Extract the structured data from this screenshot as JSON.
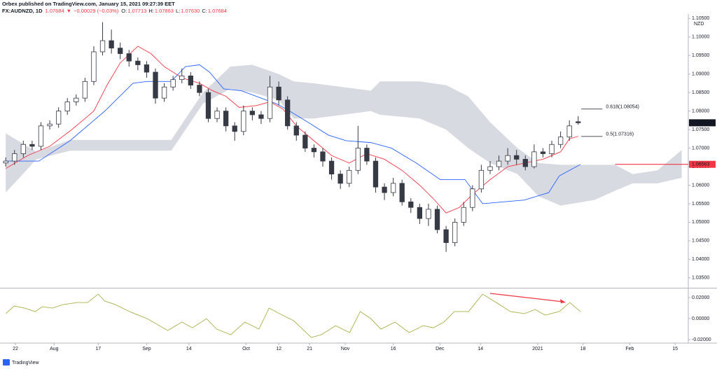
{
  "header": {
    "publisher": "Orbex published on TradingView.com, January 15, 2021 09:27:39 EET",
    "symbol": "FX:AUDNZD, 1D",
    "last": "1.07684",
    "arrow": "▼",
    "change": "−0.00029 (−0.03%)",
    "ohlc": [
      {
        "label": "O:",
        "value": "1.07713"
      },
      {
        "label": "H:",
        "value": "1.07863"
      },
      {
        "label": "L:",
        "value": "1.07630"
      },
      {
        "label": "C:",
        "value": "1.07684"
      }
    ]
  },
  "chart_data": {
    "type": "candlestick",
    "currency": "NZD",
    "xlim": [
      -1.3,
      155
    ],
    "xticks": [
      {
        "value": 2.2,
        "label": "22"
      },
      {
        "value": 11,
        "label": "Aug"
      },
      {
        "value": 21,
        "label": "17"
      },
      {
        "value": 32,
        "label": "Sep"
      },
      {
        "value": 41.6,
        "label": "14"
      },
      {
        "value": 54.6,
        "label": "Oct"
      },
      {
        "value": 62,
        "label": "12"
      },
      {
        "value": 69,
        "label": "21"
      },
      {
        "value": 77.1,
        "label": "Nov"
      },
      {
        "value": 88,
        "label": "16"
      },
      {
        "value": 98.6,
        "label": "Dec"
      },
      {
        "value": 107.8,
        "label": "14"
      },
      {
        "value": 120.8,
        "label": "2021"
      },
      {
        "value": 131.1,
        "label": "18"
      },
      {
        "value": 141.7,
        "label": "Feb"
      },
      {
        "value": 152,
        "label": "15"
      }
    ],
    "ylim": [
      1.0325,
      1.1062
    ],
    "yticks": [
      {
        "value": 1.035,
        "label": "1.03500"
      },
      {
        "value": 1.04,
        "label": "1.04000"
      },
      {
        "value": 1.045,
        "label": "1.04500"
      },
      {
        "value": 1.05,
        "label": "1.05000"
      },
      {
        "value": 1.055,
        "label": "1.05500"
      },
      {
        "value": 1.06,
        "label": "1.06000"
      },
      {
        "value": 1.065,
        "label": "1.06500"
      },
      {
        "value": 1.07,
        "label": "1.07000"
      },
      {
        "value": 1.075,
        "label": "1.07500"
      },
      {
        "value": 1.08,
        "label": "1.08000"
      },
      {
        "value": 1.085,
        "label": "1.08500"
      },
      {
        "value": 1.09,
        "label": "1.09000"
      },
      {
        "value": 1.095,
        "label": "1.09500"
      },
      {
        "value": 1.1,
        "label": "1.10000"
      },
      {
        "value": 1.105,
        "label": "1.10500"
      }
    ],
    "candles": {
      "up_color": "#ffffff",
      "down_color": "#363a45",
      "x": [
        0,
        2,
        4,
        6,
        8,
        10,
        12,
        14,
        16,
        18,
        20,
        22,
        24,
        26,
        28,
        30,
        32,
        34,
        36,
        38,
        40,
        42,
        44,
        46,
        48,
        50,
        52,
        54,
        56,
        58,
        60,
        62,
        64,
        66,
        68,
        70,
        72,
        74,
        76,
        78,
        80,
        82,
        84,
        86,
        88,
        90,
        92,
        94,
        96,
        98,
        100,
        102,
        104,
        106,
        108,
        110,
        112,
        114,
        116,
        118,
        120,
        122,
        124,
        126,
        128,
        130
      ],
      "open": [
        1.066,
        1.0665,
        1.0685,
        1.071,
        1.0705,
        1.076,
        1.0765,
        1.08,
        1.0825,
        1.0835,
        1.088,
        1.096,
        1.099,
        1.097,
        1.0955,
        1.0935,
        1.0925,
        1.0905,
        1.0835,
        1.0865,
        1.0885,
        1.0895,
        1.087,
        1.085,
        1.078,
        1.08,
        1.076,
        1.0745,
        1.08,
        1.079,
        1.078,
        1.0865,
        1.083,
        1.076,
        1.0735,
        1.07,
        1.069,
        1.0665,
        1.063,
        1.0605,
        1.064,
        1.07,
        1.0665,
        1.0595,
        1.058,
        1.0605,
        1.0555,
        1.054,
        1.051,
        1.0535,
        1.048,
        1.0445,
        1.05,
        1.054,
        1.059,
        1.064,
        1.065,
        1.0665,
        1.068,
        1.067,
        1.065,
        1.069,
        1.0685,
        1.071,
        1.073,
        1.07713
      ],
      "high": [
        1.0675,
        1.0695,
        1.072,
        1.072,
        1.077,
        1.0775,
        1.081,
        1.0835,
        1.0845,
        1.089,
        1.0975,
        1.104,
        1.102,
        1.0985,
        1.0965,
        1.0945,
        1.0935,
        1.0915,
        1.0875,
        1.0895,
        1.0915,
        1.0905,
        1.088,
        1.086,
        1.081,
        1.081,
        1.077,
        1.0815,
        1.081,
        1.08,
        1.0895,
        1.088,
        1.084,
        1.077,
        1.0745,
        1.071,
        1.07,
        1.0675,
        1.064,
        1.065,
        1.076,
        1.071,
        1.0675,
        1.0605,
        1.062,
        1.0615,
        1.0565,
        1.055,
        1.055,
        1.0545,
        1.049,
        1.051,
        1.0555,
        1.06,
        1.0655,
        1.0665,
        1.068,
        1.07,
        1.0695,
        1.068,
        1.071,
        1.07,
        1.072,
        1.0745,
        1.0775,
        1.07863
      ],
      "low": [
        1.065,
        1.0655,
        1.0675,
        1.0695,
        1.0695,
        1.075,
        1.0755,
        1.079,
        1.0815,
        1.0825,
        1.087,
        1.095,
        1.0955,
        1.094,
        1.092,
        1.091,
        1.089,
        1.082,
        1.0825,
        1.0855,
        1.0875,
        1.086,
        1.084,
        1.077,
        1.077,
        1.0745,
        1.072,
        1.0735,
        1.0775,
        1.0765,
        1.077,
        1.0815,
        1.075,
        1.072,
        1.069,
        1.0675,
        1.065,
        1.0615,
        1.059,
        1.0595,
        1.063,
        1.0655,
        1.058,
        1.056,
        1.057,
        1.0545,
        1.0525,
        1.0495,
        1.049,
        1.047,
        1.042,
        1.0435,
        1.049,
        1.053,
        1.058,
        1.063,
        1.064,
        1.0655,
        1.0655,
        1.064,
        1.0645,
        1.0675,
        1.0675,
        1.07,
        1.072,
        1.0763
      ],
      "close": [
        1.0665,
        1.0685,
        1.071,
        1.0705,
        1.076,
        1.0765,
        1.08,
        1.0825,
        1.0835,
        1.088,
        1.096,
        1.099,
        1.097,
        1.0955,
        1.0935,
        1.0925,
        1.0905,
        1.0835,
        1.0865,
        1.0885,
        1.0895,
        1.087,
        1.085,
        1.078,
        1.08,
        1.076,
        1.0745,
        1.08,
        1.079,
        1.078,
        1.0865,
        1.083,
        1.076,
        1.0735,
        1.07,
        1.069,
        1.0665,
        1.063,
        1.0605,
        1.064,
        1.07,
        1.0665,
        1.0595,
        1.058,
        1.0605,
        1.0555,
        1.054,
        1.051,
        1.0535,
        1.048,
        1.0445,
        1.05,
        1.054,
        1.059,
        1.064,
        1.065,
        1.0665,
        1.068,
        1.067,
        1.065,
        1.069,
        1.0685,
        1.071,
        1.073,
        1.076,
        1.07684
      ]
    },
    "cloud": {
      "color": "#d1d4dc",
      "x": [
        0,
        7,
        14.6,
        22.5,
        30,
        37.6,
        44.8,
        51,
        56,
        62,
        65.4,
        70,
        82.9,
        85,
        94,
        100,
        105,
        110,
        116.2,
        121,
        126,
        133.7,
        138.4,
        142.4,
        148,
        153.5
      ],
      "upper": [
        1.074,
        1.069,
        1.0722,
        1.0722,
        1.0722,
        1.0722,
        1.085,
        1.092,
        1.0925,
        1.09,
        1.088,
        1.0875,
        1.0855,
        1.088,
        1.088,
        1.087,
        1.084,
        1.077,
        1.07,
        1.066,
        1.0655,
        1.0655,
        1.0655,
        1.063,
        1.064,
        1.0695
      ],
      "lower": [
        1.058,
        1.067,
        1.0693,
        1.0693,
        1.0693,
        1.0693,
        1.082,
        1.086,
        1.085,
        1.083,
        1.078,
        1.078,
        1.08,
        1.079,
        1.078,
        1.075,
        1.07,
        1.066,
        1.063,
        1.057,
        1.0545,
        1.056,
        1.0585,
        1.0605,
        1.0605,
        1.062
      ]
    },
    "lines": [
      {
        "color": "#f23645",
        "x": [
          0,
          5,
          10,
          15,
          20,
          23,
          26,
          30,
          33,
          36,
          40,
          44,
          47,
          50,
          53,
          57,
          60,
          63,
          66,
          70,
          74,
          78,
          82,
          86,
          90,
          94,
          97,
          100,
          103,
          106,
          110,
          114,
          118,
          122,
          126,
          128,
          130
        ],
        "values": [
          1.0645,
          1.068,
          1.0705,
          1.075,
          1.08,
          1.087,
          1.093,
          1.0975,
          1.0955,
          1.092,
          1.089,
          1.0875,
          1.0855,
          1.084,
          1.081,
          1.0815,
          1.0825,
          1.0805,
          1.076,
          1.072,
          1.068,
          1.066,
          1.0685,
          1.067,
          1.064,
          1.06,
          1.0565,
          1.0525,
          1.054,
          1.0575,
          1.0615,
          1.065,
          1.066,
          1.067,
          1.069,
          1.0725,
          1.0732
        ]
      },
      {
        "color": "#2962ff",
        "x": [
          0,
          7.5,
          14.6,
          22.5,
          28.9,
          32.1,
          37.6,
          40.8,
          44,
          46.3,
          49.5,
          53.5,
          61.4,
          63.8,
          68.6,
          73.3,
          77.3,
          82.9,
          87.6,
          93.2,
          98.7,
          104.3,
          108.3,
          113,
          117.8,
          123.3,
          125.7,
          130.5
        ],
        "values": [
          1.0665,
          1.0665,
          1.072,
          1.08,
          1.0875,
          1.088,
          1.088,
          1.092,
          1.0925,
          1.0905,
          1.086,
          1.0855,
          1.082,
          1.0805,
          1.077,
          1.0735,
          1.072,
          1.0715,
          1.07,
          1.066,
          1.0615,
          1.0615,
          1.055,
          1.0555,
          1.056,
          1.058,
          1.0625,
          1.0656
        ]
      }
    ],
    "last_price": {
      "value": 1.07684,
      "color": "#131722"
    },
    "levels": [
      {
        "value": 1.06563,
        "color": "#f23645",
        "x_start": 138.4
      }
    ],
    "fib_levels": [
      {
        "value": 1.08054,
        "label": "0.618(1.08054)",
        "x_start": 130.7,
        "x_end": 135.5
      },
      {
        "value": 1.07316,
        "label": "0.5(1.07316)",
        "x_start": 130.7,
        "x_end": 135.5
      }
    ],
    "oscillator": {
      "color": "#a8b04a",
      "ylim": [
        -0.0233,
        0.028
      ],
      "yticks": [
        {
          "value": 0.02,
          "label": "0.02000"
        },
        {
          "value": 0,
          "label": "0.00000"
        },
        {
          "value": -0.02,
          "label": "-0.02000"
        }
      ],
      "x": [
        0,
        1.9,
        4.3,
        6.7,
        8.3,
        10.6,
        13,
        16.2,
        18.6,
        21,
        22.5,
        24.9,
        28.1,
        32.1,
        36.8,
        40,
        42.4,
        45.6,
        47.9,
        51.1,
        54.3,
        57.5,
        59.8,
        62.2,
        65.4,
        69.4,
        71.7,
        74.9,
        78.1,
        80.5,
        82.9,
        85.2,
        88.4,
        91.6,
        94.8,
        97.1,
        99.5,
        101.9,
        105.1,
        108.3,
        111.4,
        114.6,
        117.8,
        120.2,
        122.5,
        125.7,
        128.1,
        130.5
      ],
      "values": [
        0.0047,
        0.012,
        0.01,
        0.0067,
        0.0113,
        0.01,
        0.0133,
        0.0153,
        0.0153,
        0.0233,
        0.0167,
        0.0133,
        0.0067,
        0,
        -0.0113,
        -0.0033,
        -0.0087,
        0,
        -0.01,
        -0.0153,
        -0.0033,
        -0.01,
        0.01,
        0.0047,
        -0.002,
        -0.018,
        -0.0153,
        -0.0067,
        -0.0133,
        0.0067,
        0,
        -0.01,
        -0.0033,
        -0.0133,
        -0.0067,
        -0.0087,
        -0.0033,
        0.0067,
        0.0067,
        0.0233,
        0.0153,
        0.0067,
        0.0047,
        0.0087,
        0.0033,
        0.0067,
        0.0153,
        0.0067
      ]
    }
  },
  "footer": {
    "brand": "TradingView"
  }
}
